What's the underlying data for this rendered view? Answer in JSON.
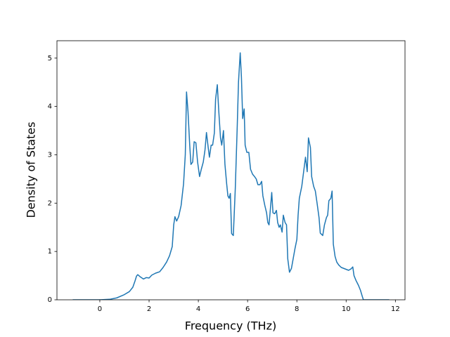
{
  "chart_data": {
    "type": "line",
    "xlabel": "Frequency (THz)",
    "ylabel": "Density of States",
    "xlim": [
      -1.74,
      12.39
    ],
    "ylim": [
      0,
      5.36
    ],
    "xticks": [
      0,
      2,
      4,
      6,
      8,
      10,
      12
    ],
    "yticks": [
      0,
      1,
      2,
      3,
      4,
      5
    ],
    "series": [
      {
        "color": "#1f77b4",
        "x": [
          -1.1,
          0,
          0.4,
          0.69,
          0.97,
          1.2,
          1.34,
          1.43,
          1.49,
          1.54,
          1.63,
          1.77,
          1.89,
          2.0,
          2.11,
          2.26,
          2.43,
          2.57,
          2.71,
          2.83,
          2.94,
          3.0,
          3.05,
          3.12,
          3.2,
          3.3,
          3.4,
          3.47,
          3.52,
          3.58,
          3.65,
          3.7,
          3.77,
          3.83,
          3.9,
          3.97,
          4.05,
          4.12,
          4.2,
          4.27,
          4.33,
          4.4,
          4.45,
          4.52,
          4.58,
          4.65,
          4.7,
          4.77,
          4.83,
          4.9,
          4.95,
          5.02,
          5.08,
          5.15,
          5.2,
          5.25,
          5.3,
          5.35,
          5.42,
          5.5,
          5.58,
          5.63,
          5.7,
          5.75,
          5.8,
          5.86,
          5.9,
          5.97,
          6.05,
          6.12,
          6.2,
          6.28,
          6.35,
          6.42,
          6.5,
          6.57,
          6.62,
          6.7,
          6.77,
          6.82,
          6.87,
          6.92,
          6.98,
          7.03,
          7.1,
          7.17,
          7.22,
          7.28,
          7.33,
          7.4,
          7.45,
          7.52,
          7.58,
          7.63,
          7.7,
          7.78,
          7.85,
          7.92,
          8.0,
          8.05,
          8.1,
          8.2,
          8.3,
          8.35,
          8.42,
          8.47,
          8.55,
          8.6,
          8.68,
          8.75,
          8.82,
          8.9,
          8.95,
          9.05,
          9.12,
          9.2,
          9.25,
          9.3,
          9.38,
          9.43,
          9.48,
          9.55,
          9.62,
          9.7,
          9.8,
          9.9,
          10.0,
          10.1,
          10.2,
          10.27,
          10.32,
          10.4,
          10.5,
          10.58,
          10.65,
          10.7,
          11.0,
          11.75
        ],
        "values": [
          0,
          0,
          0.01,
          0.04,
          0.1,
          0.17,
          0.26,
          0.39,
          0.49,
          0.52,
          0.48,
          0.43,
          0.46,
          0.45,
          0.51,
          0.55,
          0.58,
          0.67,
          0.78,
          0.91,
          1.1,
          1.55,
          1.72,
          1.63,
          1.72,
          1.95,
          2.4,
          3.0,
          4.3,
          3.9,
          3.2,
          2.8,
          2.85,
          3.27,
          3.25,
          2.85,
          2.55,
          2.7,
          2.85,
          3.1,
          3.46,
          3.15,
          2.95,
          3.2,
          3.2,
          3.45,
          4.15,
          4.45,
          3.9,
          3.35,
          3.2,
          3.5,
          2.8,
          2.4,
          2.15,
          2.1,
          2.2,
          1.37,
          1.33,
          2.3,
          3.6,
          4.5,
          5.11,
          4.6,
          3.75,
          3.95,
          3.2,
          3.05,
          3.05,
          2.7,
          2.6,
          2.55,
          2.5,
          2.38,
          2.38,
          2.45,
          2.15,
          1.95,
          1.8,
          1.6,
          1.55,
          1.85,
          2.22,
          1.8,
          1.78,
          1.85,
          1.6,
          1.5,
          1.55,
          1.4,
          1.75,
          1.6,
          1.55,
          0.85,
          0.57,
          0.65,
          0.85,
          1.05,
          1.25,
          1.75,
          2.1,
          2.35,
          2.75,
          2.95,
          2.65,
          3.35,
          3.15,
          2.55,
          2.35,
          2.25,
          2.0,
          1.7,
          1.38,
          1.33,
          1.55,
          1.7,
          1.75,
          2.05,
          2.1,
          2.25,
          1.15,
          0.9,
          0.78,
          0.72,
          0.67,
          0.65,
          0.63,
          0.61,
          0.64,
          0.68,
          0.5,
          0.4,
          0.3,
          0.2,
          0.08,
          0,
          0,
          0
        ]
      }
    ]
  }
}
